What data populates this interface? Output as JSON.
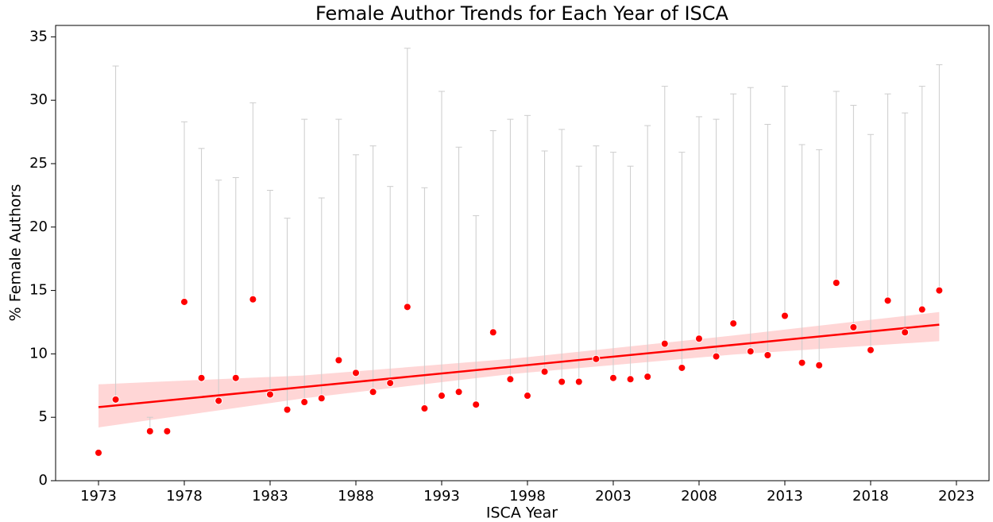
{
  "chart_data": {
    "type": "scatter",
    "title": "Female Author Trends for Each Year of ISCA",
    "xlabel": "ISCA Year",
    "ylabel": "% Female Authors",
    "xlim": [
      1970.5,
      2024.9
    ],
    "ylim": [
      0,
      35.9
    ],
    "xticks": [
      1973,
      1978,
      1983,
      1988,
      1993,
      1998,
      2003,
      2008,
      2013,
      2018,
      2023
    ],
    "yticks": [
      0,
      5,
      10,
      15,
      20,
      25,
      30,
      35
    ],
    "series": [
      {
        "color": "#ff0000",
        "error_color": "#cccccc",
        "x": [
          1973,
          1974,
          1976,
          1977,
          1978,
          1979,
          1980,
          1981,
          1982,
          1983,
          1984,
          1985,
          1986,
          1987,
          1988,
          1989,
          1990,
          1991,
          1992,
          1993,
          1994,
          1995,
          1996,
          1997,
          1998,
          1999,
          2000,
          2001,
          2002,
          2003,
          2004,
          2005,
          2006,
          2007,
          2008,
          2009,
          2010,
          2011,
          2012,
          2013,
          2014,
          2015,
          2016,
          2017,
          2018,
          2019,
          2020,
          2021,
          2022
        ],
        "values": [
          2.2,
          6.4,
          3.9,
          3.9,
          14.1,
          8.1,
          6.3,
          8.1,
          14.3,
          6.8,
          5.6,
          6.2,
          6.5,
          9.5,
          8.5,
          7.0,
          7.7,
          13.7,
          5.7,
          6.7,
          7.0,
          6.0,
          11.7,
          8.0,
          6.7,
          8.6,
          7.8,
          7.8,
          9.6,
          8.1,
          8.0,
          8.2,
          10.8,
          8.9,
          11.2,
          9.8,
          12.4,
          10.2,
          9.9,
          13.0,
          9.3,
          9.1,
          15.6,
          12.1,
          10.3,
          14.2,
          11.7,
          13.5,
          15.0
        ],
        "errors": [
          null,
          26.3,
          1.1,
          null,
          14.2,
          18.1,
          17.4,
          15.8,
          15.5,
          16.1,
          15.1,
          22.3,
          15.8,
          19.0,
          17.2,
          19.4,
          15.5,
          20.4,
          17.4,
          24.0,
          19.3,
          14.9,
          15.9,
          20.5,
          22.1,
          17.4,
          19.9,
          17.0,
          16.8,
          17.8,
          16.8,
          19.8,
          20.3,
          17.0,
          17.5,
          18.7,
          18.1,
          20.8,
          18.2,
          18.1,
          17.2,
          17.0,
          15.1,
          17.5,
          17.0,
          16.3,
          17.3,
          17.6,
          17.8
        ]
      }
    ],
    "regression": {
      "color": "#ff0000",
      "x": [
        1973,
        2022
      ],
      "values": [
        5.8,
        12.3
      ]
    },
    "confidence_band": {
      "color": "#ffcccc",
      "x": [
        1973,
        1985,
        1997,
        2010,
        2022
      ],
      "lower": [
        4.2,
        6.5,
        8.4,
        9.95,
        11.0
      ],
      "upper": [
        7.6,
        8.3,
        9.6,
        11.45,
        13.3
      ]
    }
  }
}
